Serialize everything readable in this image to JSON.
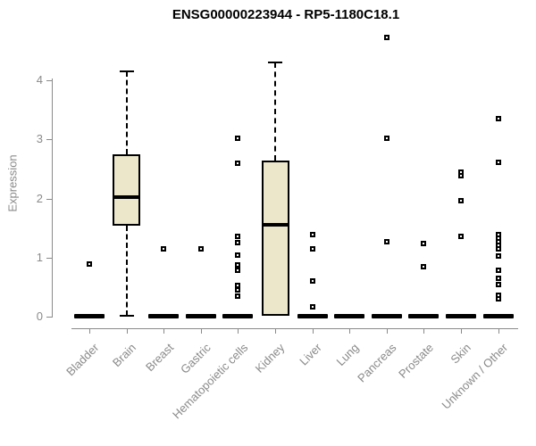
{
  "title": "ENSG00000223944 - RP5-1180C18.1",
  "colors": {
    "box_fill": "#ECE7CA",
    "box_border": "#000000",
    "median": "#000000",
    "axis": "#8A8A8A",
    "tick_text": "#8A8A8A",
    "title_text": "#000000",
    "background": "#FFFFFF"
  },
  "chart_data": {
    "type": "boxplot",
    "title": "ENSG00000223944 - RP5-1180C18.1",
    "xlabel": "",
    "ylabel": "Expression",
    "ylim": [
      0,
      4.8
    ],
    "yticks": [
      0,
      1,
      2,
      3,
      4
    ],
    "grid": false,
    "legend_position": "none",
    "categories": [
      "Bladder",
      "Brain",
      "Breast",
      "Gastric",
      "Hematopoietic cells",
      "Kidney",
      "Liver",
      "Lung",
      "Pancreas",
      "Prostate",
      "Skin",
      "Unknown / Other"
    ],
    "series": [
      {
        "label": "Bladder",
        "q1": 0,
        "median": 0,
        "q3": 0,
        "whisker_low": null,
        "whisker_high": null,
        "outliers": [
          0.89
        ]
      },
      {
        "label": "Brain",
        "q1": 1.54,
        "median": 2.02,
        "q3": 2.75,
        "whisker_low": 0.02,
        "whisker_high": 4.15,
        "outliers": []
      },
      {
        "label": "Breast",
        "q1": 0,
        "median": 0,
        "q3": 0,
        "whisker_low": null,
        "whisker_high": null,
        "outliers": [
          1.15
        ]
      },
      {
        "label": "Gastric",
        "q1": 0,
        "median": 0,
        "q3": 0,
        "whisker_low": null,
        "whisker_high": null,
        "outliers": [
          1.15
        ]
      },
      {
        "label": "Hematopoietic cells",
        "q1": 0,
        "median": 0,
        "q3": 0,
        "whisker_low": null,
        "whisker_high": null,
        "outliers": [
          3.02,
          2.6,
          1.36,
          1.25,
          1.04,
          0.88,
          0.78,
          0.53,
          0.45,
          0.35
        ]
      },
      {
        "label": "Kidney",
        "q1": 0.02,
        "median": 1.55,
        "q3": 2.64,
        "whisker_low": null,
        "whisker_high": 4.3,
        "outliers": []
      },
      {
        "label": "Liver",
        "q1": 0,
        "median": 0,
        "q3": 0,
        "whisker_low": null,
        "whisker_high": null,
        "outliers": [
          1.39,
          1.15,
          0.6,
          0.17
        ]
      },
      {
        "label": "Lung",
        "q1": 0,
        "median": 0,
        "q3": 0,
        "whisker_low": null,
        "whisker_high": null,
        "outliers": []
      },
      {
        "label": "Pancreas",
        "q1": 0,
        "median": 0,
        "q3": 0,
        "whisker_low": null,
        "whisker_high": null,
        "outliers": [
          4.72,
          3.02,
          1.27
        ]
      },
      {
        "label": "Prostate",
        "q1": 0,
        "median": 0,
        "q3": 0,
        "whisker_low": null,
        "whisker_high": null,
        "outliers": [
          1.24,
          0.85
        ]
      },
      {
        "label": "Skin",
        "q1": 0,
        "median": 0,
        "q3": 0,
        "whisker_low": null,
        "whisker_high": null,
        "outliers": [
          2.45,
          2.38,
          1.96,
          1.36
        ]
      },
      {
        "label": "Unknown / Other",
        "q1": 0,
        "median": 0,
        "q3": 0,
        "whisker_low": null,
        "whisker_high": null,
        "outliers": [
          3.35,
          2.61,
          1.39,
          1.33,
          1.27,
          1.21,
          1.15,
          1.02,
          0.78,
          0.65,
          0.54,
          0.36,
          0.3
        ]
      }
    ]
  }
}
